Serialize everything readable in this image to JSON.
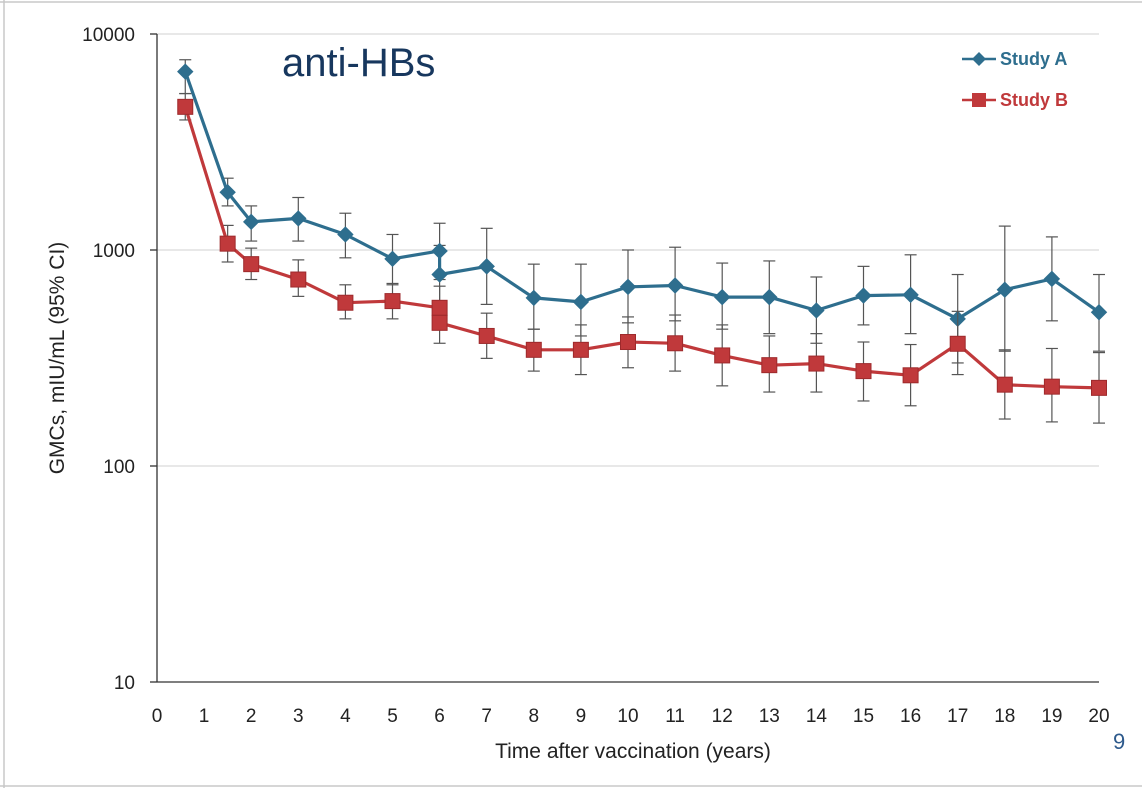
{
  "chart_data": {
    "type": "line",
    "title": "anti-HBs",
    "xlabel": "Time after vaccination (years)",
    "ylabel": "GMCs, mIU/mL (95% CI)",
    "xlim": [
      0,
      20
    ],
    "ylim": [
      10,
      10000
    ],
    "yscale": "log",
    "grid": "horizontal major",
    "legend_position": "top-right",
    "x_ticks": [
      "0",
      "1",
      "2",
      "3",
      "4",
      "5",
      "6",
      "7",
      "8",
      "9",
      "10",
      "11",
      "12",
      "13",
      "14",
      "15",
      "16",
      "17",
      "18",
      "19",
      "20"
    ],
    "y_ticks": [
      "10",
      "100",
      "1000",
      "10000"
    ],
    "series": [
      {
        "name": "Study A",
        "color": "#2E6E8E",
        "marker": "diamond",
        "points": [
          {
            "x": 0.6,
            "y": 6700,
            "lo": 5300,
            "hi": 7600
          },
          {
            "x": 1.5,
            "y": 1850,
            "lo": 1600,
            "hi": 2150
          },
          {
            "x": 2,
            "y": 1350,
            "lo": 1100,
            "hi": 1600
          },
          {
            "x": 3,
            "y": 1400,
            "lo": 1100,
            "hi": 1750
          },
          {
            "x": 4,
            "y": 1180,
            "lo": 920,
            "hi": 1480
          },
          {
            "x": 5,
            "y": 910,
            "lo": 690,
            "hi": 1180
          },
          {
            "x": 6,
            "y": 990,
            "lo": 730,
            "hi": 1330
          },
          {
            "x": 6,
            "y": 770,
            "lo": 560,
            "hi": 1050
          },
          {
            "x": 7,
            "y": 840,
            "lo": 560,
            "hi": 1260
          },
          {
            "x": 8,
            "y": 600,
            "lo": 430,
            "hi": 860
          },
          {
            "x": 9,
            "y": 575,
            "lo": 400,
            "hi": 860
          },
          {
            "x": 10,
            "y": 675,
            "lo": 460,
            "hi": 1000
          },
          {
            "x": 11,
            "y": 685,
            "lo": 470,
            "hi": 1030
          },
          {
            "x": 12,
            "y": 605,
            "lo": 430,
            "hi": 870
          },
          {
            "x": 13,
            "y": 605,
            "lo": 410,
            "hi": 890
          },
          {
            "x": 14,
            "y": 525,
            "lo": 370,
            "hi": 750
          },
          {
            "x": 15,
            "y": 615,
            "lo": 450,
            "hi": 840
          },
          {
            "x": 16,
            "y": 620,
            "lo": 410,
            "hi": 950
          },
          {
            "x": 17,
            "y": 480,
            "lo": 300,
            "hi": 770
          },
          {
            "x": 18,
            "y": 655,
            "lo": 340,
            "hi": 1290
          },
          {
            "x": 19,
            "y": 735,
            "lo": 470,
            "hi": 1150
          },
          {
            "x": 20,
            "y": 515,
            "lo": 340,
            "hi": 770
          }
        ]
      },
      {
        "name": "Study B",
        "color": "#C0393B",
        "marker": "square",
        "points": [
          {
            "x": 0.6,
            "y": 4600,
            "lo": 4000,
            "hi": 5300
          },
          {
            "x": 1.5,
            "y": 1070,
            "lo": 880,
            "hi": 1300
          },
          {
            "x": 2,
            "y": 860,
            "lo": 730,
            "hi": 1020
          },
          {
            "x": 3,
            "y": 730,
            "lo": 610,
            "hi": 900
          },
          {
            "x": 4,
            "y": 570,
            "lo": 480,
            "hi": 690
          },
          {
            "x": 5,
            "y": 580,
            "lo": 480,
            "hi": 700
          },
          {
            "x": 6,
            "y": 540,
            "lo": 430,
            "hi": 680
          },
          {
            "x": 6,
            "y": 460,
            "lo": 370,
            "hi": 570
          },
          {
            "x": 7,
            "y": 400,
            "lo": 315,
            "hi": 510
          },
          {
            "x": 8,
            "y": 345,
            "lo": 275,
            "hi": 430
          },
          {
            "x": 9,
            "y": 345,
            "lo": 265,
            "hi": 450
          },
          {
            "x": 10,
            "y": 375,
            "lo": 285,
            "hi": 490
          },
          {
            "x": 11,
            "y": 370,
            "lo": 275,
            "hi": 500
          },
          {
            "x": 12,
            "y": 325,
            "lo": 235,
            "hi": 450
          },
          {
            "x": 13,
            "y": 293,
            "lo": 220,
            "hi": 400
          },
          {
            "x": 14,
            "y": 298,
            "lo": 220,
            "hi": 410
          },
          {
            "x": 15,
            "y": 275,
            "lo": 200,
            "hi": 375
          },
          {
            "x": 16,
            "y": 263,
            "lo": 190,
            "hi": 365
          },
          {
            "x": 17,
            "y": 368,
            "lo": 265,
            "hi": 520
          },
          {
            "x": 18,
            "y": 238,
            "lo": 165,
            "hi": 345
          },
          {
            "x": 19,
            "y": 233,
            "lo": 160,
            "hi": 350
          },
          {
            "x": 20,
            "y": 230,
            "lo": 158,
            "hi": 335
          }
        ]
      }
    ]
  },
  "title_color": "#17375E",
  "page_number": "9",
  "page_number_color": "#2E5A8C"
}
